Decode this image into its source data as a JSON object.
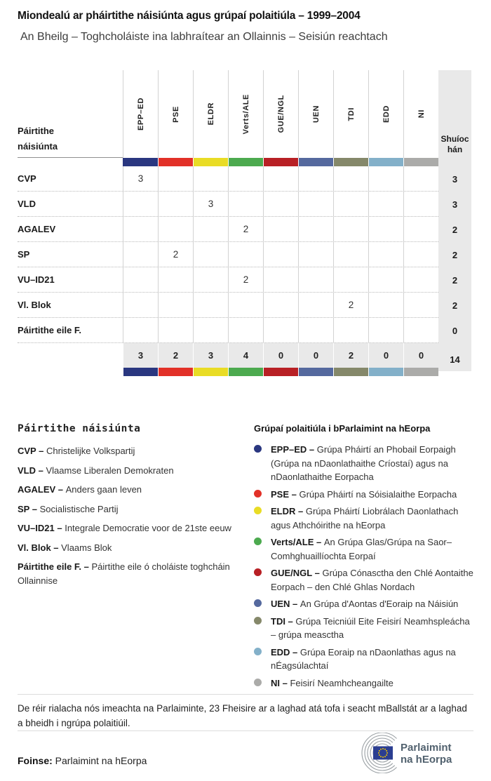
{
  "header": {
    "title": "Miondealú ar pháirtithe náisiúnta agus grúpaí polaitiúla – 1999–2004",
    "subtitle": "An Bheilg – Toghcholáiste ina labhraítear an Ollainnis – Seisiún reachtach"
  },
  "table": {
    "row_header_line1": "Páirtithe",
    "row_header_line2": "náisiúnta",
    "seats_header": "Shuíochán",
    "groups": [
      {
        "label": "EPP–ED",
        "color": "#2a3780"
      },
      {
        "label": "PSE",
        "color": "#e23128"
      },
      {
        "label": "ELDR",
        "color": "#e9dc25"
      },
      {
        "label": "Verts/ALE",
        "color": "#4caa4f"
      },
      {
        "label": "GUE/NGL",
        "color": "#b82025"
      },
      {
        "label": "UEN",
        "color": "#55699e"
      },
      {
        "label": "TDI",
        "color": "#85886a"
      },
      {
        "label": "EDD",
        "color": "#83b0c9"
      },
      {
        "label": "NI",
        "color": "#ababa9"
      }
    ],
    "rows": [
      {
        "party": "CVP",
        "seats": [
          "3",
          "",
          "",
          "",
          "",
          "",
          "",
          "",
          ""
        ],
        "total": "3"
      },
      {
        "party": "VLD",
        "seats": [
          "",
          "",
          "3",
          "",
          "",
          "",
          "",
          "",
          ""
        ],
        "total": "3"
      },
      {
        "party": "AGALEV",
        "seats": [
          "",
          "",
          "",
          "2",
          "",
          "",
          "",
          "",
          ""
        ],
        "total": "2"
      },
      {
        "party": "SP",
        "seats": [
          "",
          "2",
          "",
          "",
          "",
          "",
          "",
          "",
          ""
        ],
        "total": "2"
      },
      {
        "party": "VU–ID21",
        "seats": [
          "",
          "",
          "",
          "2",
          "",
          "",
          "",
          "",
          ""
        ],
        "total": "2"
      },
      {
        "party": "Vl. Blok",
        "seats": [
          "",
          "",
          "",
          "",
          "",
          "",
          "2",
          "",
          ""
        ],
        "total": "2"
      },
      {
        "party": "Páirtithe eile F.",
        "seats": [
          "",
          "",
          "",
          "",
          "",
          "",
          "",
          "",
          ""
        ],
        "total": "0"
      }
    ],
    "totals": {
      "by_group": [
        "3",
        "2",
        "3",
        "4",
        "0",
        "0",
        "2",
        "0",
        "0"
      ],
      "grand": "14"
    }
  },
  "party_legend": {
    "title": "Páirtithe náisiúnta",
    "items": [
      {
        "term": "CVP",
        "definition": "Christelijke Volkspartij"
      },
      {
        "term": "VLD",
        "definition": "Vlaamse Liberalen Demokraten"
      },
      {
        "term": "AGALEV",
        "definition": "Anders gaan leven"
      },
      {
        "term": "SP",
        "definition": "Socialistische Partij"
      },
      {
        "term": "VU–ID21",
        "definition": "Integrale Democratie voor de 21ste eeuw"
      },
      {
        "term": "Vl. Blok",
        "definition": "Vlaams Blok"
      },
      {
        "term": "Páirtithe eile F.",
        "definition": "Páirtithe eile ó choláiste toghcháin Ollainnise"
      }
    ]
  },
  "group_legend": {
    "title": "Grúpaí polaitiúla i bParlaimint na hEorpa",
    "items": [
      {
        "term": "EPP–ED",
        "color": "#2a3780",
        "definition": "Grúpa Pháirtí an Phobail Eorpaigh (Grúpa na nDaonlathaithe Críostaí) agus na nDaonlathaithe Eorpacha"
      },
      {
        "term": "PSE",
        "color": "#e23128",
        "definition": "Grúpa Pháirtí na Sóisialaithe Eorpacha"
      },
      {
        "term": "ELDR",
        "color": "#e9dc25",
        "definition": "Grúpa Pháirtí Liobrálach Daonlathach agus Athchóirithe na hEorpa"
      },
      {
        "term": "Verts/ALE",
        "color": "#4caa4f",
        "definition": "An Grúpa Glas/Grúpa na Saor–Comhghuaillíochta Eorpaí"
      },
      {
        "term": "GUE/NGL",
        "color": "#b82025",
        "definition": "Grúpa Cónasctha den Chlé Aontaithe Eorpach – den Chlé Ghlas Nordach"
      },
      {
        "term": "UEN",
        "color": "#55699e",
        "definition": "An Grúpa d'Aontas d'Eoraip na Náisiún"
      },
      {
        "term": "TDI",
        "color": "#85886a",
        "definition": "Grúpa Teicniúil Eite Feisirí Neamhspleácha – grúpa measctha"
      },
      {
        "term": "EDD",
        "color": "#83b0c9",
        "definition": "Grúpa Eoraip na nDaonlathas agus na nÉagsúlachtaí"
      },
      {
        "term": "NI",
        "color": "#ababa9",
        "definition": "Feisirí Neamhcheangailte"
      }
    ]
  },
  "footer": {
    "footnote": "De réir rialacha nós imeachta na Parlaiminte, 23 Fheisire ar a laghad atá tofa i seacht mBallstát ar a laghad a bheidh i ngrúpa polaitiúil.",
    "source_label": "Foinse:",
    "source_value": "Parlaimint na hEorpa",
    "logo": {
      "text_line1": "Parlaimint",
      "text_line2": "na hEorpa",
      "flag_blue": "#2b3e91",
      "star_yellow": "#f5c800",
      "text_color": "#51616e",
      "arc_color": "#9aa0a4"
    }
  },
  "chart_data": {
    "type": "table",
    "title": "Miondealú ar pháirtithe náisiúnta agus grúpaí polaitiúla – 1999–2004",
    "subtitle": "An Bheilg – Toghcholáiste ina labhraítear an Ollainnis – Seisiún reachtach",
    "columns": [
      "EPP–ED",
      "PSE",
      "ELDR",
      "Verts/ALE",
      "GUE/NGL",
      "UEN",
      "TDI",
      "EDD",
      "NI",
      "Shuíochán"
    ],
    "rows": [
      {
        "party": "CVP",
        "values": [
          3,
          null,
          null,
          null,
          null,
          null,
          null,
          null,
          null
        ],
        "total": 3
      },
      {
        "party": "VLD",
        "values": [
          null,
          null,
          3,
          null,
          null,
          null,
          null,
          null,
          null
        ],
        "total": 3
      },
      {
        "party": "AGALEV",
        "values": [
          null,
          null,
          null,
          2,
          null,
          null,
          null,
          null,
          null
        ],
        "total": 2
      },
      {
        "party": "SP",
        "values": [
          null,
          2,
          null,
          null,
          null,
          null,
          null,
          null,
          null
        ],
        "total": 2
      },
      {
        "party": "VU–ID21",
        "values": [
          null,
          null,
          null,
          2,
          null,
          null,
          null,
          null,
          null
        ],
        "total": 2
      },
      {
        "party": "Vl. Blok",
        "values": [
          null,
          null,
          null,
          null,
          null,
          null,
          2,
          null,
          null
        ],
        "total": 2
      },
      {
        "party": "Páirtithe eile F.",
        "values": [
          null,
          null,
          null,
          null,
          null,
          null,
          null,
          null,
          null
        ],
        "total": 0
      }
    ],
    "column_totals": [
      3,
      2,
      3,
      4,
      0,
      0,
      2,
      0,
      0
    ],
    "grand_total": 14
  }
}
